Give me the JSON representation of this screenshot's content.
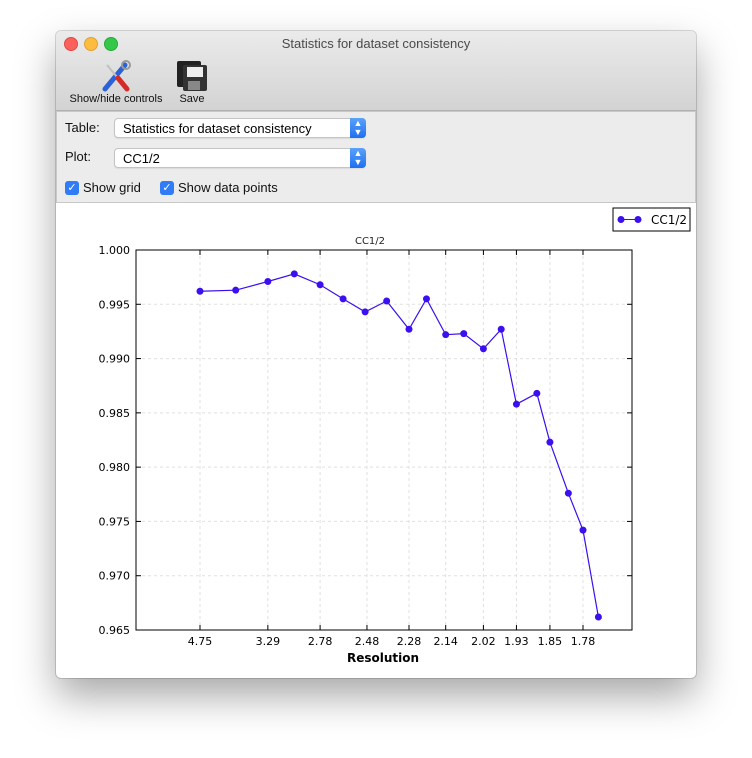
{
  "window": {
    "title": "Statistics for dataset consistency"
  },
  "toolbar": {
    "show_hide_label": "Show/hide controls",
    "save_label": "Save"
  },
  "controls": {
    "table_label": "Table:",
    "table_value": "Statistics for dataset consistency",
    "plot_label": "Plot:",
    "plot_value": "CC1/2",
    "show_grid_label": "Show grid",
    "show_grid_checked": true,
    "show_points_label": "Show data points",
    "show_points_checked": true
  },
  "chart_data": {
    "type": "line",
    "title": "CC1/2",
    "xlabel": "Resolution",
    "ylabel": "",
    "x_scale": "1/d^2 (reciprocal squared), labelled in resolution",
    "xticks": [
      "4.75",
      "3.29",
      "2.78",
      "2.48",
      "2.28",
      "2.14",
      "2.02",
      "1.93",
      "1.85",
      "1.78"
    ],
    "yticks": [
      "0.965",
      "0.970",
      "0.975",
      "0.980",
      "0.985",
      "0.990",
      "0.995",
      "1.000"
    ],
    "ylim": [
      0.965,
      1.0
    ],
    "grid": true,
    "legend": "top-right",
    "series": [
      {
        "name": "CC1/2",
        "color": "#3b0ff0",
        "x": [
          4.75,
          3.79,
          3.29,
          3.0,
          2.78,
          2.62,
          2.49,
          2.38,
          2.28,
          2.21,
          2.14,
          2.08,
          2.02,
          1.97,
          1.93,
          1.88,
          1.85,
          1.81,
          1.78,
          1.75
        ],
        "y": [
          0.9962,
          0.9963,
          0.9971,
          0.9978,
          0.9968,
          0.9955,
          0.9943,
          0.9953,
          0.9927,
          0.9955,
          0.9922,
          0.9923,
          0.9909,
          0.9927,
          0.9858,
          0.9868,
          0.9823,
          0.9776,
          0.9742,
          0.9662
        ]
      }
    ]
  }
}
